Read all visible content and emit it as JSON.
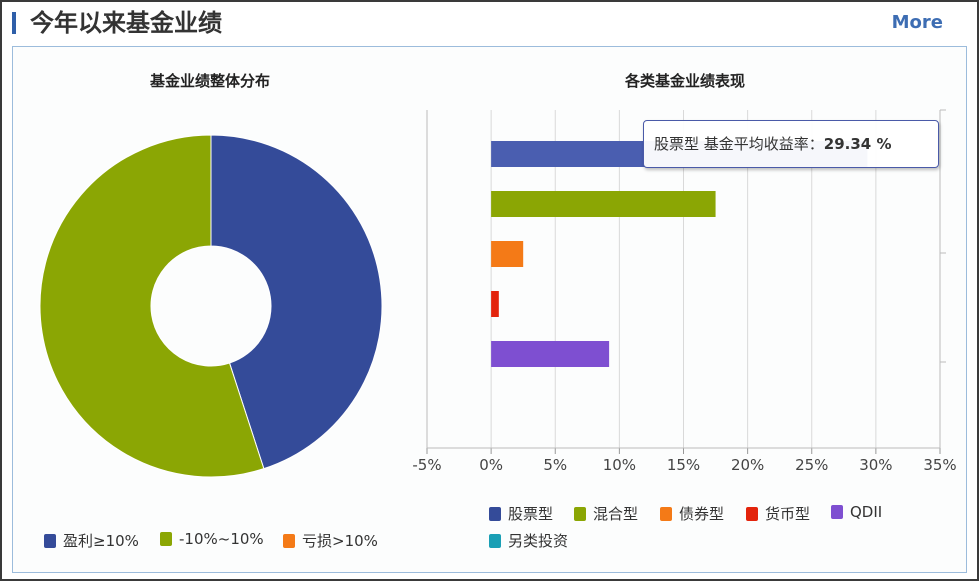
{
  "header": {
    "title": "今年以来基金业绩",
    "more_label": "More"
  },
  "colors": {
    "accent": "#2f5fa9",
    "stock": "#344b99",
    "mixed": "#8ba604",
    "bond": "#f47a17",
    "money": "#e3240c",
    "qdii": "#7e4fd1",
    "other": "#1a9fb5"
  },
  "chart_data": [
    {
      "type": "pie",
      "title": "基金业绩整体分布",
      "slices": [
        {
          "label": "盈利≥10%",
          "value": 45,
          "color": "#344b99"
        },
        {
          "label": "-10%~10%",
          "value": 55,
          "color": "#8ba604"
        },
        {
          "label": "亏损>10%",
          "value": 0,
          "color": "#f47a17"
        }
      ],
      "legend": [
        "盈利≥10%",
        "-10%~10%",
        "亏损>10%"
      ],
      "donut": true
    },
    {
      "type": "bar",
      "orientation": "horizontal",
      "title": "各类基金业绩表现",
      "categories": [
        "股票型",
        "混合型",
        "债券型",
        "货币型",
        "QDII"
      ],
      "values": [
        29.34,
        17.5,
        2.5,
        0.6,
        9.2
      ],
      "colors": [
        "#4a5eb0",
        "#8ba604",
        "#f47a17",
        "#e3240c",
        "#7e4fd1"
      ],
      "xlim": [
        -5,
        35
      ],
      "x_ticks": [
        "-5%",
        "0%",
        "5%",
        "10%",
        "15%",
        "20%",
        "25%",
        "30%",
        "35%"
      ],
      "legend": [
        {
          "label": "股票型",
          "color": "#344b99"
        },
        {
          "label": "混合型",
          "color": "#8ba604"
        },
        {
          "label": "债券型",
          "color": "#f47a17"
        },
        {
          "label": "货币型",
          "color": "#e3240c"
        },
        {
          "label": "QDII",
          "color": "#7e4fd1"
        },
        {
          "label": "另类投资",
          "color": "#1a9fb5"
        }
      ],
      "tooltip": {
        "prefix": "股票型 基金平均收益率：",
        "value": "29.34 %"
      },
      "grid": true
    }
  ]
}
